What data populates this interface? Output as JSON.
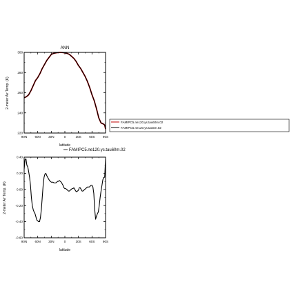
{
  "colors": {
    "series1": "#c00000",
    "series2": "#000000",
    "axis": "#000000"
  },
  "chart_data": [
    {
      "type": "line",
      "title": "ANN",
      "xlabel": "latitude",
      "ylabel": "2-meter Air Temp. (K)",
      "xlim": [
        -90,
        90
      ],
      "ylim": [
        220,
        300
      ],
      "xticks": [
        -90,
        -60,
        -30,
        0,
        30,
        60,
        90
      ],
      "xticklabels": [
        "90N",
        "60N",
        "30N",
        "0",
        "30S",
        "60S",
        "90S"
      ],
      "yticks": [
        220,
        240,
        260,
        280,
        300
      ],
      "yticklabels": [
        "220",
        "240",
        "260",
        "280",
        "300"
      ],
      "legend": {
        "placement": "right",
        "entries": [
          "FAMIPC5.ne120.ys.tau60m.02",
          "FAMIPC5.ne120.ys.tau5m.02"
        ]
      },
      "series": [
        {
          "name": "FAMIPC5.ne120.ys.tau60m.02",
          "color": "#c00000",
          "x": [
            -90,
            -85,
            -80,
            -75,
            -70,
            -65,
            -60,
            -55,
            -50,
            -45,
            -40,
            -35,
            -30,
            -25,
            -20,
            -15,
            -10,
            -5,
            0,
            5,
            10,
            15,
            20,
            25,
            30,
            35,
            40,
            45,
            50,
            55,
            60,
            65,
            70,
            75,
            80,
            85,
            88,
            90
          ],
          "y": [
            255,
            256,
            258,
            262,
            267,
            272,
            275,
            279,
            284,
            288,
            292,
            295,
            298,
            299,
            299.5,
            299.8,
            300,
            299.8,
            299.5,
            299,
            298,
            296,
            294,
            291,
            287,
            284,
            280,
            276,
            271,
            265,
            258,
            252,
            244,
            235,
            230,
            229,
            228,
            224
          ]
        },
        {
          "name": "FAMIPC5.ne120.ys.tau5m.02",
          "color": "#000000",
          "x": [
            -90,
            -85,
            -80,
            -75,
            -70,
            -65,
            -60,
            -55,
            -50,
            -45,
            -40,
            -35,
            -30,
            -25,
            -20,
            -15,
            -10,
            -5,
            0,
            5,
            10,
            15,
            20,
            25,
            30,
            35,
            40,
            45,
            50,
            55,
            60,
            65,
            70,
            75,
            80,
            85,
            88,
            90
          ],
          "y": [
            255,
            256,
            258,
            262,
            267,
            272,
            275,
            279,
            284,
            288,
            292,
            295,
            298,
            299,
            299.5,
            299.8,
            300,
            299.8,
            299.5,
            299,
            298,
            296,
            294,
            291,
            287,
            284,
            280,
            276,
            271,
            265,
            258,
            252,
            244,
            235,
            230,
            229,
            228,
            224
          ]
        }
      ]
    },
    {
      "type": "line",
      "title": "",
      "xlabel": "latitude",
      "ylabel": "2-meter Air Temp. (K)",
      "xlim": [
        -90,
        90
      ],
      "ylim": [
        -0.6,
        0.4
      ],
      "xticks": [
        -90,
        -60,
        -30,
        0,
        30,
        60,
        90
      ],
      "xticklabels": [
        "90N",
        "60N",
        "30N",
        "0",
        "30S",
        "60S",
        "90S"
      ],
      "yticks": [
        -0.6,
        -0.4,
        -0.2,
        0,
        0.2,
        0.4
      ],
      "yticklabels": [
        "-0.60",
        "-0.40",
        "-0.20",
        "0.00",
        "0.20",
        "0.40"
      ],
      "legend": {
        "placement": "top-right",
        "entries": [
          "FAMIPC5.ne120.ys.tau60m.02"
        ]
      },
      "series": [
        {
          "name": "FAMIPC5.ne120.ys.tau60m.02",
          "color": "#000000",
          "x": [
            -90,
            -88,
            -86,
            -84,
            -82,
            -80,
            -78,
            -76,
            -74,
            -72,
            -70,
            -68,
            -66,
            -64,
            -62,
            -60,
            -58,
            -56,
            -54,
            -52,
            -50,
            -48,
            -46,
            -44,
            -42,
            -40,
            -38,
            -36,
            -34,
            -32,
            -30,
            -28,
            -26,
            -24,
            -22,
            -20,
            -18,
            -16,
            -14,
            -12,
            -10,
            -8,
            -6,
            -4,
            -2,
            0,
            2,
            4,
            6,
            8,
            10,
            12,
            14,
            16,
            18,
            20,
            22,
            24,
            26,
            28,
            30,
            32,
            34,
            36,
            38,
            40,
            42,
            44,
            46,
            48,
            50,
            52,
            54,
            56,
            58,
            60,
            62,
            64,
            66,
            68,
            70,
            72,
            74,
            76,
            78,
            80,
            82,
            84,
            86,
            88,
            90
          ],
          "y": [
            0.25,
            0.37,
            0.38,
            0.3,
            0.28,
            0.22,
            0.15,
            0.05,
            -0.1,
            -0.2,
            -0.25,
            -0.28,
            -0.3,
            -0.34,
            -0.38,
            -0.39,
            -0.4,
            -0.4,
            -0.35,
            -0.25,
            -0.1,
            0.05,
            0.15,
            0.19,
            0.2,
            0.17,
            0.15,
            0.13,
            0.11,
            0.1,
            0.09,
            0.09,
            0.09,
            0.08,
            0.08,
            0.08,
            0.09,
            0.1,
            0.1,
            0.11,
            0.1,
            0.09,
            0.07,
            0.05,
            0.02,
            0.01,
            0.01,
            0.0,
            -0.01,
            -0.02,
            -0.02,
            -0.01,
            0.0,
            0.01,
            0.01,
            0.02,
            0.0,
            -0.02,
            -0.03,
            -0.02,
            -0.01,
            0.02,
            0.02,
            0.0,
            -0.02,
            -0.02,
            -0.01,
            0.0,
            0.01,
            0.02,
            0.03,
            0.03,
            0.03,
            0.04,
            0.05,
            0.05,
            0.03,
            -0.05,
            -0.25,
            -0.37,
            -0.33,
            -0.3,
            -0.28,
            -0.2,
            -0.1,
            -0.02,
            0.05,
            0.12,
            0.15,
            0.15,
            0.38
          ]
        }
      ]
    }
  ]
}
